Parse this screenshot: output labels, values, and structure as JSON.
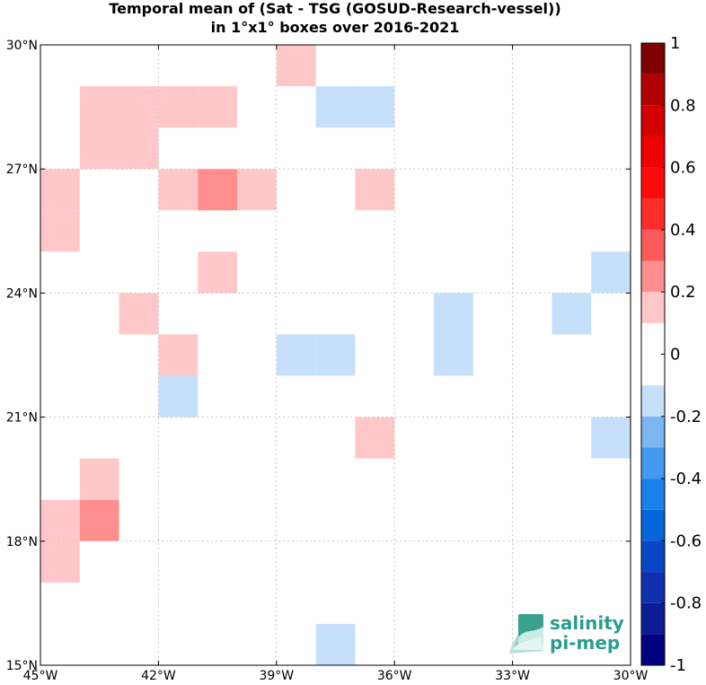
{
  "title": {
    "line1": "Temporal mean of (Sat - TSG (GOSUD-Research-vessel))",
    "line2": "in 1°x1° boxes over 2016-2021"
  },
  "map": {
    "lon_range": [
      -45,
      -30
    ],
    "lat_range": [
      15,
      30
    ],
    "grid": true,
    "x_ticks": [
      {
        "value": -45,
        "label": "45°W"
      },
      {
        "value": -42,
        "label": "42°W"
      },
      {
        "value": -39,
        "label": "39°W"
      },
      {
        "value": -36,
        "label": "36°W"
      },
      {
        "value": -33,
        "label": "33°W"
      },
      {
        "value": -30,
        "label": "30°W"
      }
    ],
    "y_ticks": [
      {
        "value": 30,
        "label": "30°N"
      },
      {
        "value": 27,
        "label": "27°N"
      },
      {
        "value": 24,
        "label": "24°N"
      },
      {
        "value": 21,
        "label": "21°N"
      },
      {
        "value": 18,
        "label": "18°N"
      },
      {
        "value": 15,
        "label": "15°N"
      }
    ],
    "cells": [
      {
        "lon": -39,
        "lat": 29,
        "value": 0.15
      },
      {
        "lon": -44,
        "lat": 28,
        "value": 0.15
      },
      {
        "lon": -43,
        "lat": 28,
        "value": 0.15
      },
      {
        "lon": -42,
        "lat": 28,
        "value": 0.15
      },
      {
        "lon": -41,
        "lat": 28,
        "value": 0.15
      },
      {
        "lon": -38,
        "lat": 28,
        "value": -0.15
      },
      {
        "lon": -37,
        "lat": 28,
        "value": -0.15
      },
      {
        "lon": -44,
        "lat": 27,
        "value": 0.15
      },
      {
        "lon": -43,
        "lat": 27,
        "value": 0.15
      },
      {
        "lon": -45,
        "lat": 26,
        "value": 0.15
      },
      {
        "lon": -42,
        "lat": 26,
        "value": 0.15
      },
      {
        "lon": -41,
        "lat": 26,
        "value": 0.25
      },
      {
        "lon": -40,
        "lat": 26,
        "value": 0.15
      },
      {
        "lon": -37,
        "lat": 26,
        "value": 0.15
      },
      {
        "lon": -45,
        "lat": 25,
        "value": 0.15
      },
      {
        "lon": -41,
        "lat": 24,
        "value": 0.15
      },
      {
        "lon": -31,
        "lat": 24,
        "value": -0.15
      },
      {
        "lon": -43,
        "lat": 23,
        "value": 0.15
      },
      {
        "lon": -35,
        "lat": 23,
        "value": -0.15
      },
      {
        "lon": -32,
        "lat": 23,
        "value": -0.15
      },
      {
        "lon": -42,
        "lat": 22,
        "value": 0.15
      },
      {
        "lon": -39,
        "lat": 22,
        "value": -0.15
      },
      {
        "lon": -38,
        "lat": 22,
        "value": -0.15
      },
      {
        "lon": -35,
        "lat": 22,
        "value": -0.15
      },
      {
        "lon": -42,
        "lat": 21,
        "value": -0.15
      },
      {
        "lon": -37,
        "lat": 20,
        "value": 0.15
      },
      {
        "lon": -31,
        "lat": 20,
        "value": -0.15
      },
      {
        "lon": -44,
        "lat": 19,
        "value": 0.15
      },
      {
        "lon": -45,
        "lat": 18,
        "value": 0.15
      },
      {
        "lon": -44,
        "lat": 18,
        "value": 0.25
      },
      {
        "lon": -45,
        "lat": 17,
        "value": 0.15
      },
      {
        "lon": -38,
        "lat": 15,
        "value": -0.15
      }
    ]
  },
  "colorbar": {
    "range": [
      -1,
      1
    ],
    "bins": [
      {
        "from": -1.0,
        "to": -0.9,
        "color": "#000080"
      },
      {
        "from": -0.9,
        "to": -0.8,
        "color": "#0a1c96"
      },
      {
        "from": -0.8,
        "to": -0.7,
        "color": "#0f30ad"
      },
      {
        "from": -0.7,
        "to": -0.6,
        "color": "#0747c6"
      },
      {
        "from": -0.6,
        "to": -0.5,
        "color": "#0566dc"
      },
      {
        "from": -0.5,
        "to": -0.4,
        "color": "#1a80ec"
      },
      {
        "from": -0.4,
        "to": -0.3,
        "color": "#4499ef"
      },
      {
        "from": -0.3,
        "to": -0.2,
        "color": "#7bb6f2"
      },
      {
        "from": -0.2,
        "to": -0.1,
        "color": "#c6e0fb"
      },
      {
        "from": -0.1,
        "to": 0.1,
        "color": "#ffffff"
      },
      {
        "from": 0.1,
        "to": 0.2,
        "color": "#ffc7c7"
      },
      {
        "from": 0.2,
        "to": 0.3,
        "color": "#ff8f8f"
      },
      {
        "from": 0.3,
        "to": 0.4,
        "color": "#ff5a5a"
      },
      {
        "from": 0.4,
        "to": 0.5,
        "color": "#ff2c2c"
      },
      {
        "from": 0.5,
        "to": 0.6,
        "color": "#ff0a0a"
      },
      {
        "from": 0.6,
        "to": 0.7,
        "color": "#ee0000"
      },
      {
        "from": 0.7,
        "to": 0.8,
        "color": "#d40000"
      },
      {
        "from": 0.8,
        "to": 0.9,
        "color": "#b00000"
      },
      {
        "from": 0.9,
        "to": 1.0,
        "color": "#800000"
      }
    ],
    "ticks": [
      {
        "value": 1,
        "label": "1"
      },
      {
        "value": 0.8,
        "label": "0.8"
      },
      {
        "value": 0.6,
        "label": "0.6"
      },
      {
        "value": 0.4,
        "label": "0.4"
      },
      {
        "value": 0.2,
        "label": "0.2"
      },
      {
        "value": 0,
        "label": "0"
      },
      {
        "value": -0.2,
        "label": "-0.2"
      },
      {
        "value": -0.4,
        "label": "-0.4"
      },
      {
        "value": -0.6,
        "label": "-0.6"
      },
      {
        "value": -0.8,
        "label": "-0.8"
      },
      {
        "value": -1,
        "label": "-1"
      }
    ]
  },
  "logo": {
    "line1": "salinity",
    "line2": "pi-mep",
    "color": "#2a9d8f"
  }
}
